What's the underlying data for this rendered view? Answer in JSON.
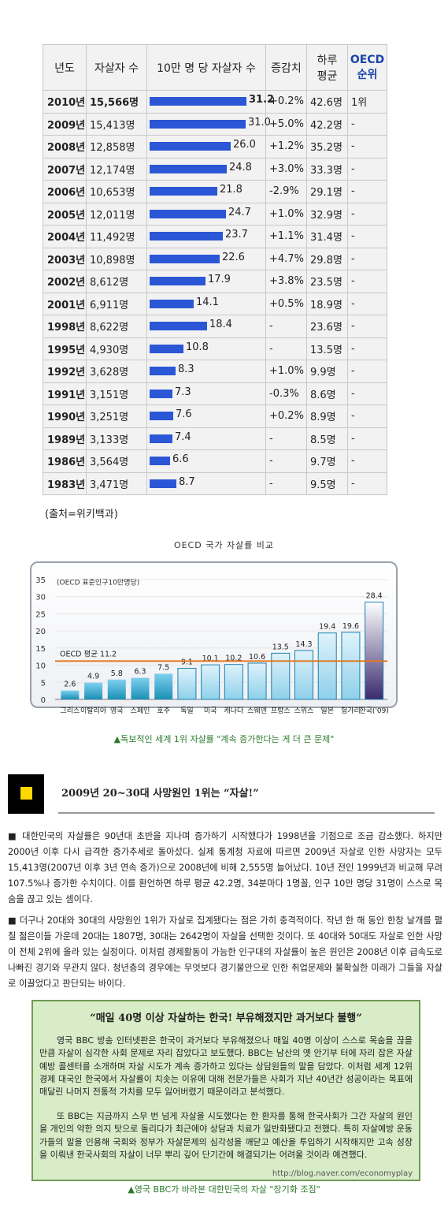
{
  "table": {
    "headers": {
      "year": "년도",
      "count": "자살자 수",
      "rate": "10만 명 당 자살자 수",
      "change": "증감치",
      "daily_line1": "하루",
      "daily_line2": "평균",
      "oecd_line1": "OECD",
      "oecd_line2": "순위"
    },
    "bar_max": 31.2,
    "rows": [
      {
        "year": "2010년",
        "count": "15,566명",
        "rate": 31.2,
        "rate_label": "31.2",
        "change": "+0.2%",
        "daily": "42.6명",
        "oecd": "1위"
      },
      {
        "year": "2009년",
        "count": "15,413명",
        "rate": 31.0,
        "rate_label": "31.0",
        "change": "+5.0%",
        "daily": "42.2명",
        "oecd": "-"
      },
      {
        "year": "2008년",
        "count": "12,858명",
        "rate": 26.0,
        "rate_label": "26.0",
        "change": "+1.2%",
        "daily": "35.2명",
        "oecd": "-"
      },
      {
        "year": "2007년",
        "count": "12,174명",
        "rate": 24.8,
        "rate_label": "24.8",
        "change": "+3.0%",
        "daily": "33.3명",
        "oecd": "-"
      },
      {
        "year": "2006년",
        "count": "10,653명",
        "rate": 21.8,
        "rate_label": "21.8",
        "change": "-2.9%",
        "daily": "29.1명",
        "oecd": "-"
      },
      {
        "year": "2005년",
        "count": "12,011명",
        "rate": 24.7,
        "rate_label": "24.7",
        "change": "+1.0%",
        "daily": "32.9명",
        "oecd": "-"
      },
      {
        "year": "2004년",
        "count": "11,492명",
        "rate": 23.7,
        "rate_label": "23.7",
        "change": "+1.1%",
        "daily": "31.4명",
        "oecd": "-"
      },
      {
        "year": "2003년",
        "count": "10,898명",
        "rate": 22.6,
        "rate_label": "22.6",
        "change": "+4.7%",
        "daily": "29.8명",
        "oecd": "-"
      },
      {
        "year": "2002년",
        "count": "8,612명",
        "rate": 17.9,
        "rate_label": "17.9",
        "change": "+3.8%",
        "daily": "23.5명",
        "oecd": "-"
      },
      {
        "year": "2001년",
        "count": "6,911명",
        "rate": 14.1,
        "rate_label": "14.1",
        "change": "+0.5%",
        "daily": "18.9명",
        "oecd": "-"
      },
      {
        "year": "1998년",
        "count": "8,622명",
        "rate": 18.4,
        "rate_label": "18.4",
        "change": "-",
        "daily": "23.6명",
        "oecd": "-"
      },
      {
        "year": "1995년",
        "count": "4,930명",
        "rate": 10.8,
        "rate_label": "10.8",
        "change": "-",
        "daily": "13.5명",
        "oecd": "-"
      },
      {
        "year": "1992년",
        "count": "3,628명",
        "rate": 8.3,
        "rate_label": "8.3",
        "change": "+1.0%",
        "daily": "9.9명",
        "oecd": "-"
      },
      {
        "year": "1991년",
        "count": "3,151명",
        "rate": 7.3,
        "rate_label": "7.3",
        "change": "-0.3%",
        "daily": "8.6명",
        "oecd": "-"
      },
      {
        "year": "1990년",
        "count": "3,251명",
        "rate": 7.6,
        "rate_label": "7.6",
        "change": "+0.2%",
        "daily": "8.9명",
        "oecd": "-"
      },
      {
        "year": "1989년",
        "count": "3,133명",
        "rate": 7.4,
        "rate_label": "7.4",
        "change": "-",
        "daily": "8.5명",
        "oecd": "-"
      },
      {
        "year": "1986년",
        "count": "3,564명",
        "rate": 6.6,
        "rate_label": "6.6",
        "change": "-",
        "daily": "9.7명",
        "oecd": "-"
      },
      {
        "year": "1983년",
        "count": "3,471명",
        "rate": 8.7,
        "rate_label": "8.7",
        "change": "-",
        "daily": "9.5명",
        "oecd": "-"
      }
    ],
    "source": "(출처=위키백과)"
  },
  "chart_data": {
    "type": "bar",
    "title": "OECD 국가 자살률 비교",
    "ylabel": "(OECD 표준인구10만명당)",
    "ylim": [
      0,
      35
    ],
    "yticks": [
      0,
      5,
      10,
      15,
      20,
      25,
      30,
      35
    ],
    "categories": [
      "그리스",
      "이탈리아",
      "영국",
      "스페인",
      "호주",
      "독일",
      "미국",
      "캐나다",
      "스웨덴",
      "프랑스",
      "스위스",
      "일본",
      "헝가리",
      "한국('09)"
    ],
    "values": [
      2.6,
      4.9,
      5.8,
      6.3,
      7.5,
      9.1,
      10.1,
      10.2,
      10.6,
      13.5,
      14.3,
      19.4,
      19.6,
      28.4
    ],
    "value_labels": [
      "2.6",
      "4.9",
      "5.8",
      "6.3",
      "7.5",
      "9.1",
      "10.1",
      "10.2",
      "10.6",
      "13.5",
      "14.3",
      "19.4",
      "19.6",
      "28.4"
    ],
    "reference_line": {
      "label": "OECD 평균 11.2",
      "value": 11.2
    },
    "grid": true,
    "colors": {
      "low": "#1a8fb5",
      "mid": "#8fd0ea",
      "korea_top": "#ffffff",
      "korea_bottom": "#3a2a6e",
      "average_line": "#e0781c"
    },
    "caption": "▲독보적인 세계 1위 자살률 \"계속 증가한다는 게 더 큰 문제\""
  },
  "article": {
    "headline": "2009년 20~30대 사망원인 1위는 “자살!”",
    "paragraph1": "■ 대한민국의 자살률은 90년대 초반을 지나며 증가하기 시작했다가 1998년을 기점으로 조금 감소했다. 하지만 2000년 이후 다시 급격한 증가추세로 돌아섰다. 실제 통계청 자료에 따르면 2009년 자살로 인한 사망자는 모두 15,413명(2007년 이후 3년 연속 증가)으로 2008년에 비해 2,555명 늘어났다. 10년 전인 1999년과 비교해 무려 107.5%나 증가한 수치이다. 이를 환언하면 하루 평균 42.2명, 34분마다 1명꼴, 인구 10만 명당 31명이 스스로 목숨을 끊고 있는 셈이다.",
    "paragraph2": "■ 더구나 20대와 30대의 사망원인 1위가 자살로 집계됐다는 점은 가히 충격적이다. 작년 한 해 동안 한창 날개를 펼칠 젊은이들 가운데 20대는 1807명, 30대는 2642명이 자살을 선택한 것이다. 또 40대와 50대도 자살로 인한 사망이 전체 2위에 올라 있는 실정이다. 이처럼 경제활동이 가능한 인구대의 자살률이 높은 원인은 2008년 이후 급속도로 나빠진 경기와 무관치 않다. 청년층의 경우에는 무엇보다 경기불안으로 인한 취업문제와 불확실한 미래가 그들을 자살로 이끌었다고 판단되는 바이다."
  },
  "quote": {
    "title": "“매일 40명 이상 자살하는 한국! 부유해졌지만 과거보다 불행”",
    "body1": "영국 BBC 방송 인터넷판은 한국이 과거보다 부유해졌으나 매일 40명 이상이 스스로 목숨을 끊을 만큼 자살이 심각한 사회 문제로 자리 잡았다고 보도했다. BBC는 남산의 옛 안기부 터에 자리 잡은 자살예방 콜센터를 소개하며 자살 시도가 계속 증가하고 있다는 상담원들의 말을 담았다. 이처럼 세계 12위 경제 대국인 한국에서 자살률이 치솟는 이유에 대해 전문가들은 사회가 지난 40년간 성공이라는 목표에 매달린 나머지 전통적 가치를 모두 잃어버렸기 때문이라고 분석했다.",
    "body2": "또 BBC는 지금까지 스무 번 넘게 자살을 시도했다는 한 환자를 통해 한국사회가 그간 자살의 원인을 개인의 약한 의지 탓으로 돌리다가 최근에야 상담과 치료가 일반화됐다고 전했다. 특히 자살예방 운동가들의 말을 인용해 국회와 정부가 자살문제의 심각성을 깨닫고 예산을 투입하기 시작해지만 고속 성장을 이뤄낸 한국사회의 자살이 너무 뿌리 깊어 단기간에 해결되기는 어려울 것이라 예견했다.",
    "watermark": "http://blog.naver.com/economyplay",
    "caption": "▲영국 BBC가 바라본 대한민국의 자살 \"장기화 조짐\""
  }
}
